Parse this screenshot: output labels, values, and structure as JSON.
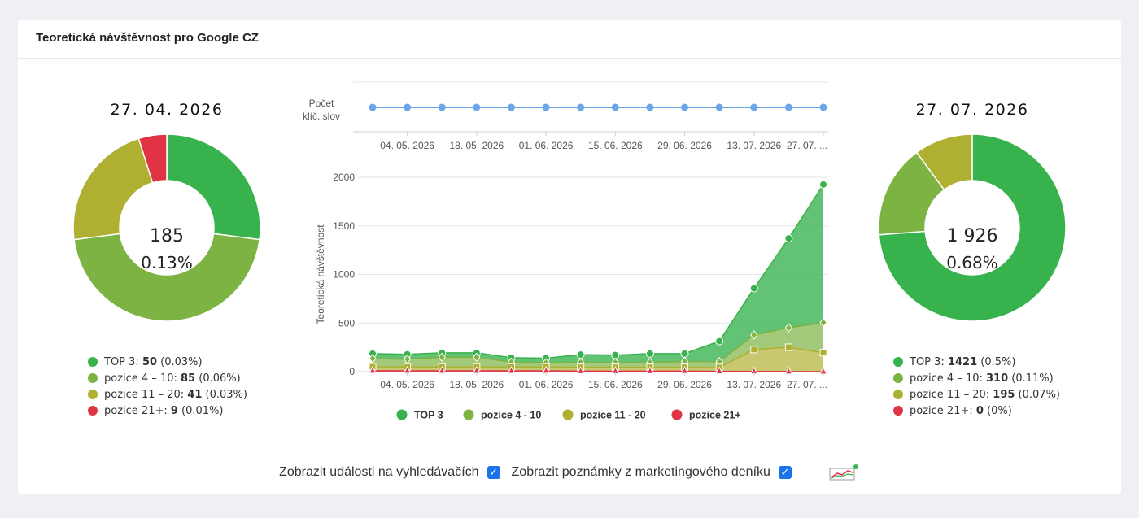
{
  "card": {
    "title": "Teoretická návštěvnost pro Google CZ"
  },
  "left_pie": {
    "date": "27. 04. 2026",
    "total": "185",
    "percent": "0.13%",
    "legend": [
      {
        "label": "TOP 3:",
        "value": "50",
        "pct": "(0.03%)"
      },
      {
        "label": "pozice 4 – 10:",
        "value": "85",
        "pct": "(0.06%)"
      },
      {
        "label": "pozice 11 – 20:",
        "value": "41",
        "pct": "(0.03%)"
      },
      {
        "label": "pozice 21+:",
        "value": "9",
        "pct": "(0.01%)"
      }
    ]
  },
  "right_pie": {
    "date": "27. 07. 2026",
    "total": "1 926",
    "percent": "0.68%",
    "legend": [
      {
        "label": "TOP 3:",
        "value": "1421",
        "pct": "(0.5%)"
      },
      {
        "label": "pozice 4 – 10:",
        "value": "310",
        "pct": "(0.11%)"
      },
      {
        "label": "pozice 11 – 20:",
        "value": "195",
        "pct": "(0.07%)"
      },
      {
        "label": "pozice 21+:",
        "value": "0",
        "pct": "(0%)"
      }
    ]
  },
  "colors": {
    "top3": "#37b24d",
    "p4_10": "#7cb342",
    "p11_20": "#afb032",
    "p21": "#e03444",
    "keywords": "#6aa6e8"
  },
  "chart_data": [
    {
      "type": "pie",
      "title": "27. 04. 2026",
      "categories": [
        "TOP 3",
        "pozice 4 - 10",
        "pozice 11 - 20",
        "pozice 21+"
      ],
      "values": [
        50,
        85,
        41,
        9
      ]
    },
    {
      "type": "line",
      "ylabel": "Počet klíč. slov",
      "x": [
        "27. 04. 2026",
        "04. 05. 2026",
        "11. 05. 2026",
        "18. 05. 2026",
        "25. 05. 2026",
        "01. 06. 2026",
        "08. 06. 2026",
        "15. 06. 2026",
        "22. 06. 2026",
        "29. 06. 2026",
        "06. 07. 2026",
        "13. 07. 2026",
        "20. 07. 2026",
        "27. 07. 2026"
      ],
      "x_ticks": [
        "04. 05. 2026",
        "18. 05. 2026",
        "01. 06. 2026",
        "15. 06. 2026",
        "29. 06. 2026",
        "13. 07. 2026",
        "27. 07. ..."
      ],
      "series": [
        {
          "values": [
            1,
            1,
            1,
            1,
            1,
            1,
            1,
            1,
            1,
            1,
            1,
            1,
            1,
            1
          ]
        }
      ]
    },
    {
      "type": "area",
      "ylabel": "Teoretická návštěvnost",
      "ylim": [
        0,
        2000
      ],
      "yticks": [
        0,
        500,
        1000,
        1500,
        2000
      ],
      "x": [
        "27. 04. 2026",
        "04. 05. 2026",
        "11. 05. 2026",
        "18. 05. 2026",
        "25. 05. 2026",
        "01. 06. 2026",
        "08. 06. 2026",
        "15. 06. 2026",
        "22. 06. 2026",
        "29. 06. 2026",
        "06. 07. 2026",
        "13. 07. 2026",
        "20. 07. 2026",
        "27. 07. 2026"
      ],
      "x_ticks": [
        "04. 05. 2026",
        "18. 05. 2026",
        "01. 06. 2026",
        "15. 06. 2026",
        "29. 06. 2026",
        "13. 07. 2026",
        "27. 07. ..."
      ],
      "stacked": true,
      "legend": "bottom",
      "series": [
        {
          "name": "TOP 3",
          "values": [
            50,
            50,
            45,
            45,
            45,
            45,
            80,
            75,
            90,
            80,
            210,
            480,
            920,
            1421
          ]
        },
        {
          "name": "pozice 4 - 10",
          "values": [
            85,
            80,
            100,
            100,
            50,
            45,
            50,
            50,
            50,
            60,
            60,
            150,
            200,
            310
          ]
        },
        {
          "name": "pozice 11 - 20",
          "values": [
            41,
            40,
            40,
            40,
            40,
            40,
            40,
            40,
            40,
            40,
            40,
            225,
            250,
            195
          ]
        },
        {
          "name": "pozice 21+",
          "values": [
            9,
            8,
            8,
            8,
            8,
            8,
            5,
            5,
            5,
            5,
            3,
            2,
            1,
            0
          ]
        }
      ]
    },
    {
      "type": "pie",
      "title": "27. 07. 2026",
      "categories": [
        "TOP 3",
        "pozice 4 - 10",
        "pozice 11 - 20",
        "pozice 21+"
      ],
      "values": [
        1421,
        310,
        195,
        0
      ]
    }
  ],
  "keyword_label": [
    "Počet",
    "klíč. slov"
  ],
  "area_ylabel": "Teoretická návštěvnost",
  "footer": {
    "events_label": "Zobrazit události na vyhledávačích",
    "notes_label": "Zobrazit poznámky z marketingového deníku",
    "check_glyph": "✓"
  }
}
